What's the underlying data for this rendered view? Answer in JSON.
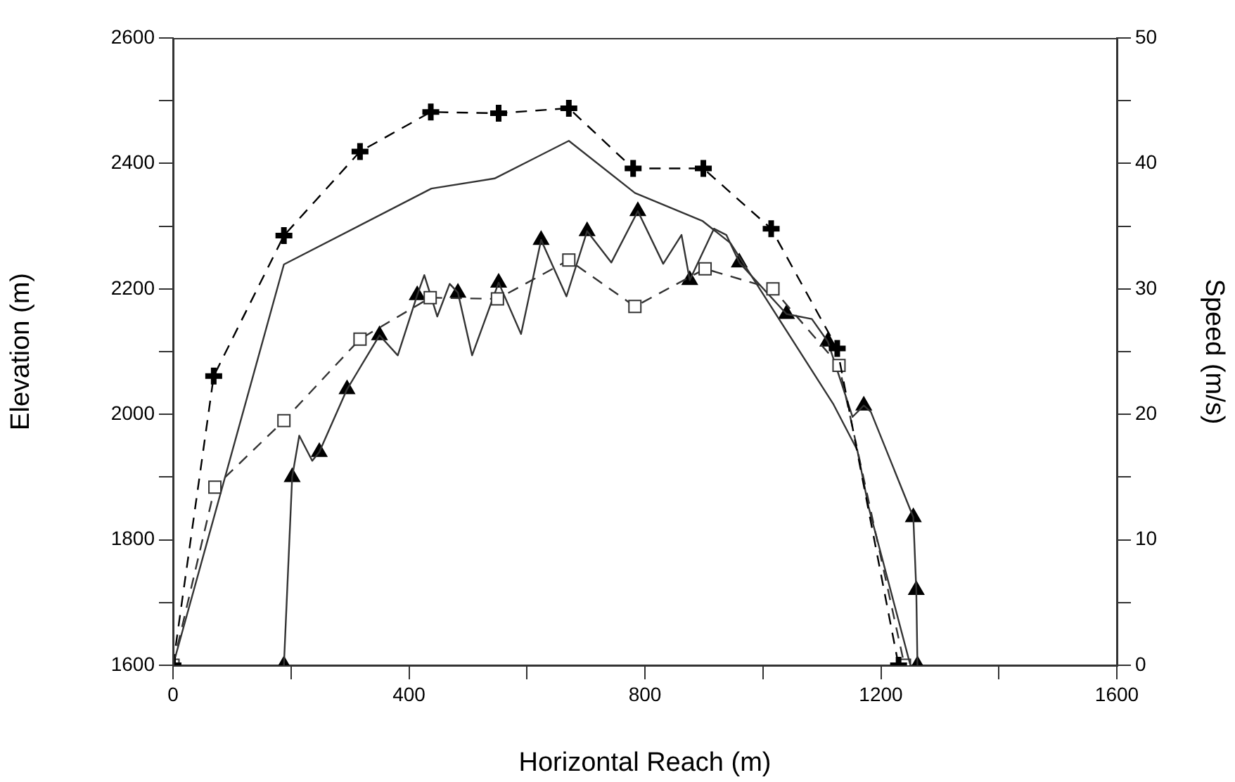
{
  "chart_data": {
    "type": "line",
    "xlabel": "Horizontal Reach (m)",
    "ylabel": "Elevation (m)",
    "y2label": "Speed (m/s)",
    "xlim": [
      0,
      1600
    ],
    "xticks": [
      0,
      {
        "value": 200,
        "label": null
      },
      400,
      {
        "value": 600,
        "label": null
      },
      800,
      {
        "value": 1000,
        "label": null
      },
      1200,
      {
        "value": 1400,
        "label": null
      },
      1600
    ],
    "ylim": [
      1600,
      2600
    ],
    "yticks": [
      1600,
      {
        "value": 1700,
        "label": null
      },
      1800,
      {
        "value": 1900,
        "label": null
      },
      2000,
      {
        "value": 2100,
        "label": null
      },
      2200,
      {
        "value": 2300,
        "label": null
      },
      2400,
      {
        "value": 2500,
        "label": null
      },
      2600
    ],
    "y2lim": [
      0,
      50
    ],
    "y2ticks": [
      0,
      {
        "value": 5,
        "label": null
      },
      10,
      {
        "value": 15,
        "label": null
      },
      20,
      {
        "value": 25,
        "label": null
      },
      30,
      {
        "value": 35,
        "label": null
      },
      40,
      {
        "value": 45,
        "label": null
      },
      50
    ],
    "grid": false,
    "legend": false,
    "series": [
      {
        "type": "line",
        "color": "#000000",
        "marker": "cross",
        "line_style": "dashed",
        "x": [
          0,
          69,
          188,
          317,
          437,
          552,
          671,
          780,
          899,
          1014,
          1126,
          1230
        ],
        "values": [
          1600,
          2061,
          2285,
          2419,
          2482,
          2480,
          2488,
          2392,
          2392,
          2296,
          2105,
          1600
        ]
      },
      {
        "type": "line",
        "color": "#333333",
        "marker": "none",
        "line_style": "solid",
        "x": [
          0,
          188,
          438,
          545,
          671,
          783,
          898,
          945,
          1119,
          1160,
          1179,
          1250
        ],
        "values": [
          1600,
          2239,
          2360,
          2376,
          2436,
          2353,
          2308,
          2273,
          2017,
          1943,
          1853,
          1600
        ]
      },
      {
        "type": "line",
        "axis": "y2",
        "color": "#333333",
        "marker": "square",
        "line_style": "dashed",
        "x": [
          0,
          71,
          188,
          317,
          436,
          550,
          671,
          783,
          902,
          1017,
          1129,
          1240
        ],
        "values": [
          0,
          14.2,
          19.5,
          26.0,
          29.3,
          29.2,
          32.3,
          28.6,
          31.6,
          30.0,
          23.9,
          0
        ]
      },
      {
        "type": "line",
        "axis": "y2",
        "color": "#333333",
        "marker": "none",
        "line_style": "solid",
        "x": [
          188,
          202,
          214,
          236,
          248,
          295,
          350,
          381,
          414,
          426,
          448,
          469,
          483,
          507,
          552,
          590,
          624,
          667,
          702,
          743,
          788,
          831,
          862,
          876,
          917,
          938,
          960,
          1040,
          1083,
          1110,
          1152,
          1171,
          1183,
          1255,
          1260,
          1262
        ],
        "values": [
          0,
          15.0,
          18.3,
          16.3,
          17.0,
          22.0,
          26.3,
          24.7,
          29.5,
          31.1,
          27.8,
          30.4,
          29.7,
          24.7,
          30.5,
          26.4,
          33.9,
          29.4,
          34.6,
          32.1,
          36.2,
          32.0,
          34.3,
          30.7,
          34.8,
          34.3,
          32.1,
          28.0,
          27.6,
          25.8,
          19.8,
          20.7,
          20.2,
          11.8,
          6.0,
          0
        ]
      },
      {
        "type": "scatter",
        "axis": "y2",
        "color": "#000000",
        "marker": "triangle",
        "x": [
          188,
          202,
          248,
          295,
          350,
          414,
          483,
          552,
          624,
          702,
          788,
          876,
          960,
          1040,
          1110,
          1171,
          1255,
          1260,
          1262
        ],
        "values": [
          0,
          15.0,
          17.0,
          22.0,
          26.3,
          29.5,
          29.7,
          30.5,
          33.9,
          34.6,
          36.2,
          30.7,
          32.1,
          28.0,
          25.8,
          20.7,
          11.8,
          6.0,
          0
        ]
      }
    ]
  }
}
